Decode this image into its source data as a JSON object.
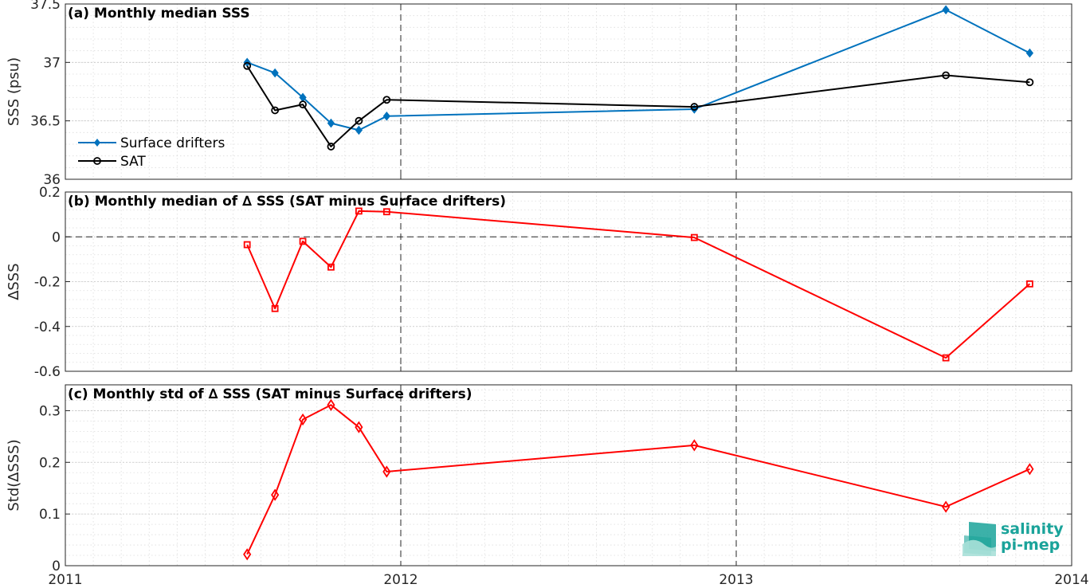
{
  "chart_data": [
    {
      "type": "line",
      "title": "(a) Monthly median SSS",
      "ylabel": "SSS (psu)",
      "xlim": [
        2011,
        2014
      ],
      "ylim": [
        36,
        37.5
      ],
      "xticks": [
        "2011",
        "2012",
        "2013",
        "2014"
      ],
      "yticks": [
        "36",
        "36.5",
        "37",
        "37.5"
      ],
      "grid": true,
      "legend": "left",
      "series": [
        {
          "name": "Surface drifters",
          "color": "#0072bd",
          "marker": "diamond-filled",
          "x": [
            2011.542,
            2011.625,
            2011.708,
            2011.792,
            2011.875,
            2011.958,
            2012.875,
            2013.625,
            2013.875
          ],
          "y": [
            37.0,
            36.91,
            36.7,
            36.48,
            36.42,
            36.54,
            36.6,
            37.45,
            37.08
          ]
        },
        {
          "name": "SAT",
          "color": "#000000",
          "marker": "circle-open",
          "x": [
            2011.542,
            2011.625,
            2011.708,
            2011.792,
            2011.875,
            2011.958,
            2012.875,
            2013.625,
            2013.875
          ],
          "y": [
            36.97,
            36.59,
            36.64,
            36.28,
            36.5,
            36.68,
            36.62,
            36.89,
            36.83
          ]
        }
      ]
    },
    {
      "type": "line",
      "title": "(b) Monthly median of ∆ SSS (SAT minus Surface drifters)",
      "ylabel": "∆SSS",
      "xlim": [
        2011,
        2014
      ],
      "ylim": [
        -0.6,
        0.2
      ],
      "yticks": [
        "-0.6",
        "-0.4",
        "-0.2",
        "0",
        "0.2"
      ],
      "grid": true,
      "series": [
        {
          "color": "#ff0000",
          "marker": "square-open",
          "x": [
            2011.542,
            2011.625,
            2011.708,
            2011.792,
            2011.875,
            2011.958,
            2012.875,
            2013.625,
            2013.875
          ],
          "y": [
            -0.035,
            -0.32,
            -0.02,
            -0.135,
            0.115,
            0.112,
            -0.003,
            -0.54,
            -0.21
          ]
        }
      ]
    },
    {
      "type": "line",
      "title": "(c) Monthly std of ∆ SSS (SAT minus Surface drifters)",
      "ylabel": "Std(∆SSS)",
      "xlim": [
        2011,
        2014
      ],
      "ylim": [
        0,
        0.35
      ],
      "yticks": [
        "0",
        "0.1",
        "0.2",
        "0.3"
      ],
      "grid": true,
      "series": [
        {
          "color": "#ff0000",
          "marker": "diamond-open",
          "x": [
            2011.542,
            2011.625,
            2011.708,
            2011.792,
            2011.875,
            2011.958,
            2012.875,
            2013.625,
            2013.875
          ],
          "y": [
            0.022,
            0.137,
            0.283,
            0.311,
            0.268,
            0.182,
            0.233,
            0.114,
            0.187
          ]
        }
      ]
    }
  ],
  "logo": {
    "line1": "salinity",
    "line2": "pi-mep",
    "color": "#1aa39a"
  }
}
